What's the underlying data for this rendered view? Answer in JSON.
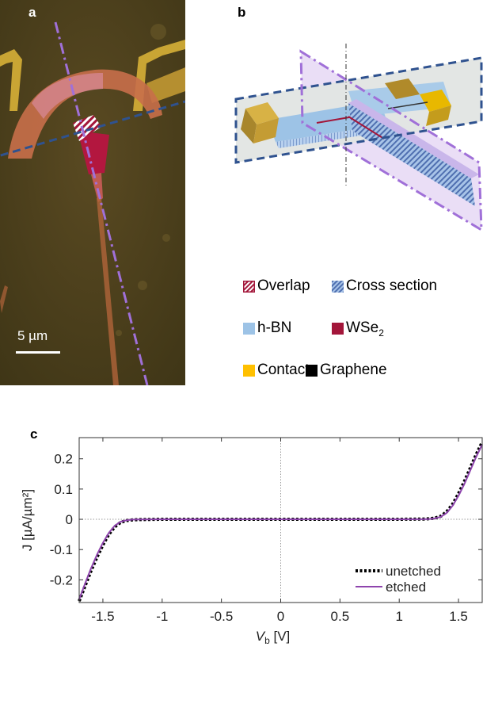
{
  "panels": {
    "a": {
      "letter": "a",
      "scalebar": "5 µm"
    },
    "b": {
      "letter": "b"
    },
    "c": {
      "letter": "c"
    }
  },
  "legend": {
    "overlap": "Overlap",
    "cross_section": "Cross section",
    "hbn": "h-BN",
    "wse2_base": "WSe",
    "wse2_sub": "2",
    "contact": "Contact",
    "graphene": "Graphene"
  },
  "colors": {
    "hbn": "#9dc3e6",
    "wse2": "#a3163a",
    "contact": "#ffc000",
    "graphene": "#000000",
    "etched": "#8e44ad",
    "cut_blue": "#2f528f",
    "cut_purple": "#a070d8"
  },
  "chart_data": {
    "type": "line",
    "xlabel_var": "V",
    "xlabel_sub": "b",
    "xlabel_unit": " [V]",
    "ylabel": "J [µA/µm²]",
    "xlim": [
      -1.7,
      1.7
    ],
    "ylim": [
      -0.275,
      0.27
    ],
    "xticks": [
      "-1.5",
      "-1",
      "-0.5",
      "0",
      "0.5",
      "1",
      "1.5"
    ],
    "xtick_values": [
      -1.5,
      -1,
      -0.5,
      0,
      0.5,
      1,
      1.5
    ],
    "yticks": [
      "-0.2",
      "-0.1",
      "0",
      "0.1",
      "0.2"
    ],
    "ytick_values": [
      -0.2,
      -0.1,
      0,
      0.1,
      0.2
    ],
    "legend_position": "bottom-right",
    "series": [
      {
        "name": "unetched",
        "style": "dotted",
        "x": [
          -1.7,
          -1.65,
          -1.6,
          -1.55,
          -1.5,
          -1.45,
          -1.4,
          -1.35,
          -1.3,
          -1.25,
          -1.2,
          -1.0,
          -0.5,
          0,
          0.5,
          1.0,
          1.2,
          1.25,
          1.3,
          1.35,
          1.4,
          1.45,
          1.5,
          1.55,
          1.6,
          1.65,
          1.7
        ],
        "values": [
          -0.27,
          -0.22,
          -0.17,
          -0.125,
          -0.085,
          -0.05,
          -0.025,
          -0.01,
          -0.004,
          -0.002,
          -0.001,
          0,
          0,
          0,
          0,
          0,
          0.001,
          0.002,
          0.004,
          0.01,
          0.025,
          0.05,
          0.085,
          0.125,
          0.17,
          0.215,
          0.255
        ]
      },
      {
        "name": "etched",
        "style": "solid",
        "x": [
          -1.7,
          -1.65,
          -1.6,
          -1.55,
          -1.5,
          -1.45,
          -1.4,
          -1.35,
          -1.3,
          -1.25,
          -1.2,
          -1.0,
          -0.5,
          0,
          0.5,
          1.0,
          1.2,
          1.25,
          1.3,
          1.35,
          1.4,
          1.45,
          1.5,
          1.55,
          1.6,
          1.65,
          1.7
        ],
        "values": [
          -0.265,
          -0.212,
          -0.162,
          -0.117,
          -0.078,
          -0.045,
          -0.021,
          -0.008,
          -0.003,
          -0.001,
          -0.0005,
          0,
          0,
          0,
          0,
          0,
          0.0005,
          0.001,
          0.003,
          0.008,
          0.021,
          0.045,
          0.078,
          0.117,
          0.162,
          0.207,
          0.247
        ]
      }
    ]
  }
}
